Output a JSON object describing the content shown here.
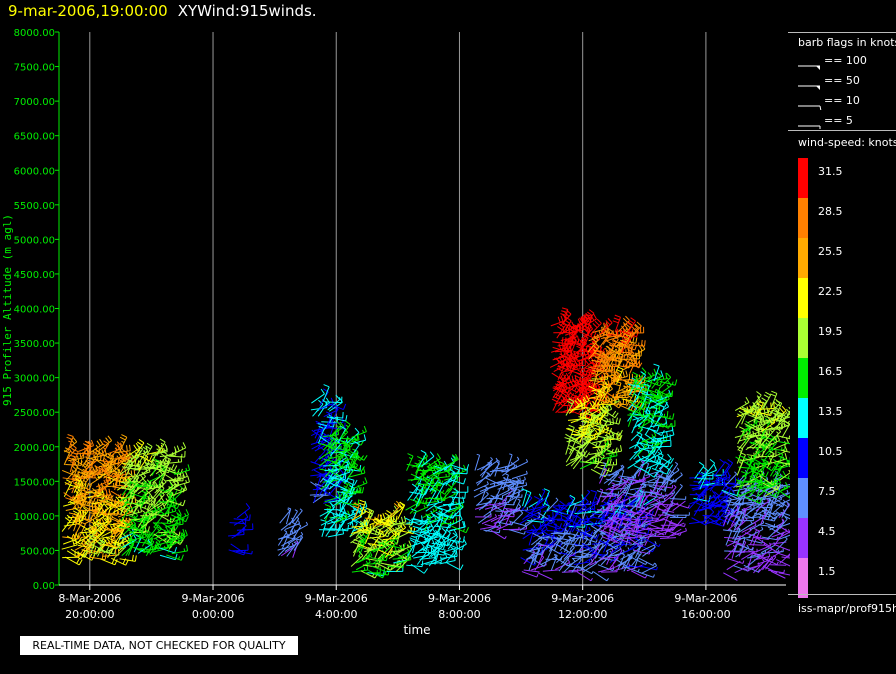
{
  "header": {
    "datetime": "9-mar-2006,19:00:00",
    "title": "XYWind:915winds."
  },
  "notice": "REAL-TIME DATA, NOT CHECKED FOR QUALITY",
  "legend": {
    "barb_title": "barb flags in knots",
    "barbs": [
      {
        "label": "== 100",
        "kind": "flag"
      },
      {
        "label": "== 50",
        "kind": "flag"
      },
      {
        "label": "== 10",
        "kind": "full"
      },
      {
        "label": "== 5",
        "kind": "half"
      }
    ],
    "speed_title": "wind-speed: knots",
    "scale": [
      {
        "label": "31.5",
        "color": "#ff0000"
      },
      {
        "label": "28.5",
        "color": "#ff8000"
      },
      {
        "label": "25.5",
        "color": "#ffaa00"
      },
      {
        "label": "22.5",
        "color": "#ffff00"
      },
      {
        "label": "19.5",
        "color": "#aaff33"
      },
      {
        "label": "16.5",
        "color": "#00ee00"
      },
      {
        "label": "13.5",
        "color": "#00ffff"
      },
      {
        "label": "10.5",
        "color": "#0000ff"
      },
      {
        "label": "7.5",
        "color": "#5f8fff"
      },
      {
        "label": "4.5",
        "color": "#9933ff"
      },
      {
        "label": "1.5",
        "color": "#ee77ee"
      }
    ],
    "footer": "iss-mapr/prof915h"
  },
  "chart_data": {
    "type": "scatter",
    "xlabel": "time",
    "ylabel": "915 Profiler Altitude (m agl)",
    "ylim": [
      0,
      8000
    ],
    "yticks": [
      "0.00",
      "500.00",
      "1000.00",
      "1500.00",
      "2000.00",
      "2500.00",
      "3000.00",
      "3500.00",
      "4000.00",
      "4500.00",
      "5000.00",
      "5500.00",
      "6000.00",
      "6500.00",
      "7000.00",
      "7500.00",
      "8000.00"
    ],
    "xlim_hours": [
      -1,
      22.6
    ],
    "xticks": [
      {
        "hours": 0,
        "date": "8-Mar-2006",
        "time": "20:00:00"
      },
      {
        "hours": 4,
        "date": "9-Mar-2006",
        "time": "0:00:00"
      },
      {
        "hours": 8,
        "date": "9-Mar-2006",
        "time": "4:00:00"
      },
      {
        "hours": 12,
        "date": "9-Mar-2006",
        "time": "8:00:00"
      },
      {
        "hours": 16,
        "date": "9-Mar-2006",
        "time": "12:00:00"
      },
      {
        "hours": 20,
        "date": "9-Mar-2006",
        "time": "16:00:00"
      }
    ],
    "vertical_grid": true,
    "barb_clusters": [
      {
        "t0": -1.0,
        "t1": 1.0,
        "z0": 400,
        "z1": 2000,
        "sp0": 20,
        "sp1": 30
      },
      {
        "t0": 1.0,
        "t1": 2.8,
        "z0": 450,
        "z1": 1900,
        "sp0": 14,
        "sp1": 22
      },
      {
        "t0": 4.5,
        "t1": 4.8,
        "z0": 500,
        "z1": 1000,
        "sp0": 9,
        "sp1": 12
      },
      {
        "t0": 6.1,
        "t1": 6.6,
        "z0": 400,
        "z1": 900,
        "sp0": 5,
        "sp1": 9
      },
      {
        "t0": 7.2,
        "t1": 7.9,
        "z0": 1200,
        "z1": 2700,
        "sp0": 8,
        "sp1": 14
      },
      {
        "t0": 7.5,
        "t1": 8.5,
        "z0": 700,
        "z1": 2200,
        "sp0": 13,
        "sp1": 17
      },
      {
        "t0": 8.5,
        "t1": 10.0,
        "z0": 200,
        "z1": 1000,
        "sp0": 14,
        "sp1": 26
      },
      {
        "t0": 10.3,
        "t1": 11.8,
        "z0": 300,
        "z1": 1800,
        "sp0": 12,
        "sp1": 17
      },
      {
        "t0": 12.5,
        "t1": 13.7,
        "z0": 800,
        "z1": 1700,
        "sp0": 5,
        "sp1": 8
      },
      {
        "t0": 14.0,
        "t1": 18.0,
        "z0": 200,
        "z1": 1200,
        "sp0": 4,
        "sp1": 14
      },
      {
        "t0": 15.0,
        "t1": 16.2,
        "z0": 2500,
        "z1": 3800,
        "sp0": 30,
        "sp1": 34
      },
      {
        "t0": 15.5,
        "t1": 16.8,
        "z0": 1700,
        "z1": 2600,
        "sp0": 17,
        "sp1": 24
      },
      {
        "t0": 16.2,
        "t1": 17.6,
        "z0": 2600,
        "z1": 3700,
        "sp0": 22,
        "sp1": 32
      },
      {
        "t0": 16.5,
        "t1": 19.0,
        "z0": 700,
        "z1": 1600,
        "sp0": 3,
        "sp1": 8
      },
      {
        "t0": 17.5,
        "t1": 18.5,
        "z0": 1700,
        "z1": 3000,
        "sp0": 12,
        "sp1": 18
      },
      {
        "t0": 19.5,
        "t1": 20.6,
        "z0": 900,
        "z1": 1600,
        "sp0": 9,
        "sp1": 13
      },
      {
        "t0": 20.6,
        "t1": 23.0,
        "z0": 200,
        "z1": 1500,
        "sp0": 4,
        "sp1": 9
      },
      {
        "t0": 21.0,
        "t1": 23.0,
        "z0": 1300,
        "z1": 2600,
        "sp0": 15,
        "sp1": 22
      }
    ]
  }
}
